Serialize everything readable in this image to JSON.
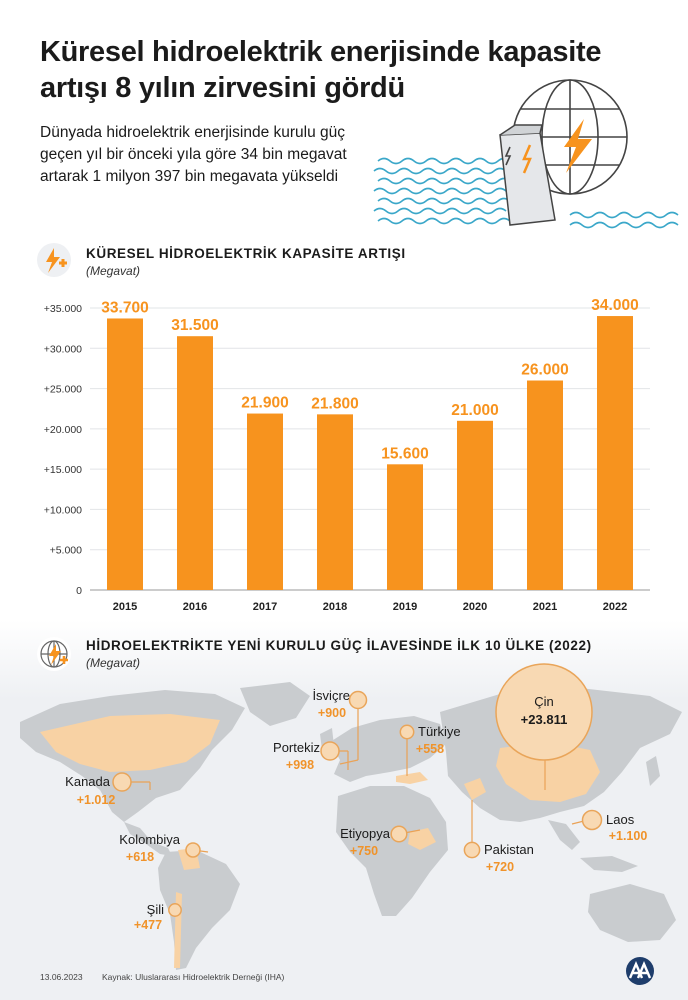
{
  "header": {
    "title": "Küresel hidroelektrik enerjisinde kapasite artışı 8 yılın zirvesini gördü",
    "subtitle": "Dünyada hidroelektrik enerjisinde kurulu güç geçen yıl bir önceki yıla göre 34 bin megavat artarak 1 milyon 397 bin megavata yükseldi"
  },
  "section1": {
    "title": "KÜRESEL HİDROELEKTRİK KAPASİTE ARTIŞI",
    "unit": "(Megavat)"
  },
  "section2": {
    "title": "HİDROELEKTRİKTE YENİ KURULU GÜÇ İLAVESİNDE İLK 10 ÜLKE (2022)",
    "unit": "(Megavat)"
  },
  "colors": {
    "accent": "#f7931e",
    "accent_light": "#f8d9b3",
    "bubble_stroke": "#e9a55a",
    "map_land": "#c9cccf",
    "highlight_land": "#f8d2a4"
  },
  "chart_data": {
    "type": "bar",
    "title": "KÜRESEL HİDROELEKTRİK KAPASİTE ARTIŞI",
    "unit": "(Megavat)",
    "categories": [
      "2015",
      "2016",
      "2017",
      "2018",
      "2019",
      "2020",
      "2021",
      "2022"
    ],
    "values": [
      33700,
      31500,
      21900,
      21800,
      15600,
      21000,
      26000,
      34000
    ],
    "value_labels": [
      "33.700",
      "31.500",
      "21.900",
      "21.800",
      "15.600",
      "21.000",
      "26.000",
      "34.000"
    ],
    "yticks": [
      0,
      5000,
      10000,
      15000,
      20000,
      25000,
      30000,
      35000
    ],
    "ytick_labels": [
      "0",
      "+5.000",
      "+10.000",
      "+15.000",
      "+20.000",
      "+25.000",
      "+30.000",
      "+35.000"
    ],
    "ylim": [
      0,
      35000
    ],
    "grid": true,
    "legend": "none"
  },
  "map": {
    "countries": [
      {
        "name": "Çin",
        "value": "+23.811",
        "mw": 23811
      },
      {
        "name": "Kanada",
        "value": "+1.012",
        "mw": 1012
      },
      {
        "name": "Laos",
        "value": "+1.100",
        "mw": 1100
      },
      {
        "name": "Portekiz",
        "value": "+998",
        "mw": 998
      },
      {
        "name": "İsviçre",
        "value": "+900",
        "mw": 900
      },
      {
        "name": "Etiyopya",
        "value": "+750",
        "mw": 750
      },
      {
        "name": "Pakistan",
        "value": "+720",
        "mw": 720
      },
      {
        "name": "Kolombiya",
        "value": "+618",
        "mw": 618
      },
      {
        "name": "Türkiye",
        "value": "+558",
        "mw": 558
      },
      {
        "name": "Şili",
        "value": "+477",
        "mw": 477
      }
    ]
  },
  "footer": {
    "date": "13.06.2023",
    "source": "Kaynak: Uluslararası Hidroelektrik Derneği (IHA)",
    "logo": "AA"
  }
}
